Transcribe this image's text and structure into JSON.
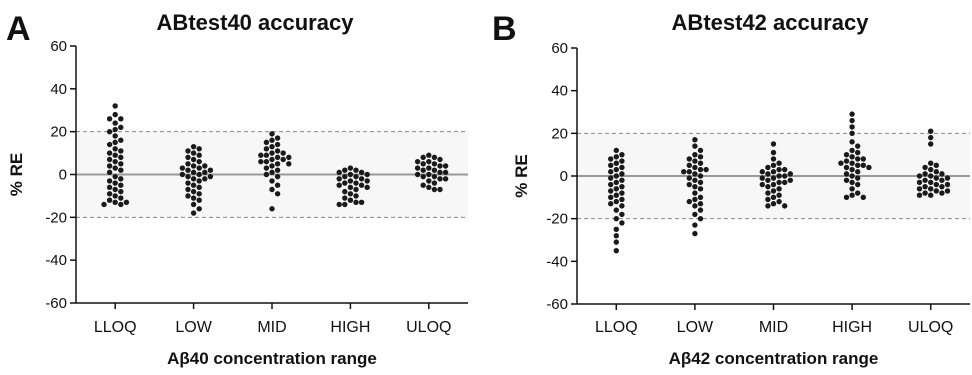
{
  "chart_data": [
    {
      "type": "scatter",
      "panel_letter": "A",
      "title": "ABtest40  accuracy",
      "xlabel": "Aβ40 concentration range",
      "ylabel": "% RE",
      "ylim": [
        -60,
        60
      ],
      "yticks": [
        -60,
        -40,
        -20,
        0,
        20,
        40,
        60
      ],
      "acceptance_limits": [
        -20,
        20
      ],
      "zero_line": 0,
      "categories": [
        "LLOQ",
        "LOW",
        "MID",
        "HIGH",
        "ULOQ"
      ],
      "series": [
        {
          "category": "LLOQ",
          "values": [
            32,
            28,
            26,
            26,
            24,
            22,
            21,
            20,
            18,
            16,
            15,
            14,
            12,
            11,
            10,
            9,
            8,
            7,
            6,
            5,
            4,
            3,
            2,
            1,
            -1,
            -2,
            -3,
            -4,
            -5,
            -6,
            -7,
            -8,
            -9,
            -10,
            -11,
            -12,
            -13,
            -14,
            -14,
            -13
          ]
        },
        {
          "category": "LOW",
          "values": [
            13,
            12,
            11,
            10,
            9,
            8,
            7,
            6,
            5,
            4,
            4,
            3,
            3,
            2,
            2,
            1,
            1,
            0,
            0,
            -1,
            -1,
            -2,
            -2,
            -3,
            -4,
            -5,
            -6,
            -7,
            -8,
            -9,
            -10,
            -11,
            -12,
            -14,
            -16,
            -18
          ]
        },
        {
          "category": "MID",
          "values": [
            19,
            17,
            16,
            15,
            14,
            13,
            12,
            11,
            10,
            10,
            9,
            9,
            8,
            8,
            7,
            7,
            6,
            6,
            5,
            5,
            4,
            3,
            2,
            1,
            0,
            -1,
            -3,
            -5,
            -7,
            -9,
            -16
          ]
        },
        {
          "category": "HIGH",
          "values": [
            3,
            2,
            2,
            1,
            1,
            0,
            0,
            -1,
            -1,
            -2,
            -2,
            -3,
            -3,
            -4,
            -4,
            -5,
            -5,
            -6,
            -6,
            -7,
            -8,
            -9,
            -10,
            -11,
            -12,
            -13,
            -14,
            -14,
            -13
          ]
        },
        {
          "category": "ULOQ",
          "values": [
            9,
            8,
            8,
            7,
            6,
            6,
            5,
            5,
            4,
            4,
            3,
            3,
            2,
            2,
            1,
            1,
            0,
            0,
            -1,
            -1,
            -2,
            -2,
            -3,
            -4,
            -5,
            -6,
            -7,
            -7
          ]
        }
      ]
    },
    {
      "type": "scatter",
      "panel_letter": "B",
      "title": "ABtest42 accuracy",
      "xlabel": "Aβ42 concentration range",
      "ylabel": "% RE",
      "ylim": [
        -60,
        60
      ],
      "yticks": [
        -60,
        -40,
        -20,
        0,
        20,
        40,
        60
      ],
      "acceptance_limits": [
        -20,
        20
      ],
      "zero_line": 0,
      "categories": [
        "LLOQ",
        "LOW",
        "MID",
        "HIGH",
        "ULOQ"
      ],
      "series": [
        {
          "category": "LLOQ",
          "values": [
            12,
            10,
            9,
            8,
            7,
            6,
            5,
            4,
            3,
            2,
            1,
            0,
            -1,
            -2,
            -3,
            -4,
            -5,
            -6,
            -7,
            -8,
            -9,
            -10,
            -11,
            -12,
            -13,
            -14,
            -16,
            -18,
            -20,
            -22,
            -25,
            -28,
            -31,
            -35
          ]
        },
        {
          "category": "LOW",
          "values": [
            17,
            14,
            12,
            10,
            9,
            8,
            7,
            6,
            5,
            4,
            3,
            3,
            2,
            2,
            1,
            0,
            -1,
            -2,
            -3,
            -4,
            -5,
            -6,
            -8,
            -10,
            -11,
            -12,
            -13,
            -14,
            -16,
            -18,
            -20,
            -23,
            -27
          ]
        },
        {
          "category": "MID",
          "values": [
            15,
            11,
            8,
            6,
            5,
            4,
            3,
            3,
            2,
            2,
            1,
            1,
            0,
            0,
            -1,
            -1,
            -2,
            -2,
            -3,
            -3,
            -4,
            -4,
            -5,
            -6,
            -7,
            -8,
            -9,
            -10,
            -11,
            -12,
            -13,
            -14,
            -14
          ]
        },
        {
          "category": "HIGH",
          "values": [
            29,
            26,
            23,
            20,
            16,
            14,
            12,
            11,
            10,
            9,
            8,
            8,
            7,
            6,
            6,
            5,
            5,
            4,
            4,
            3,
            2,
            1,
            0,
            -1,
            -2,
            -3,
            -4,
            -6,
            -8,
            -9,
            -10,
            -10
          ]
        },
        {
          "category": "ULOQ",
          "values": [
            21,
            18,
            15,
            6,
            5,
            4,
            3,
            2,
            1,
            1,
            0,
            0,
            -1,
            -1,
            -2,
            -2,
            -3,
            -3,
            -4,
            -4,
            -5,
            -5,
            -6,
            -6,
            -7,
            -7,
            -8,
            -8,
            -9,
            -9
          ]
        }
      ]
    }
  ]
}
